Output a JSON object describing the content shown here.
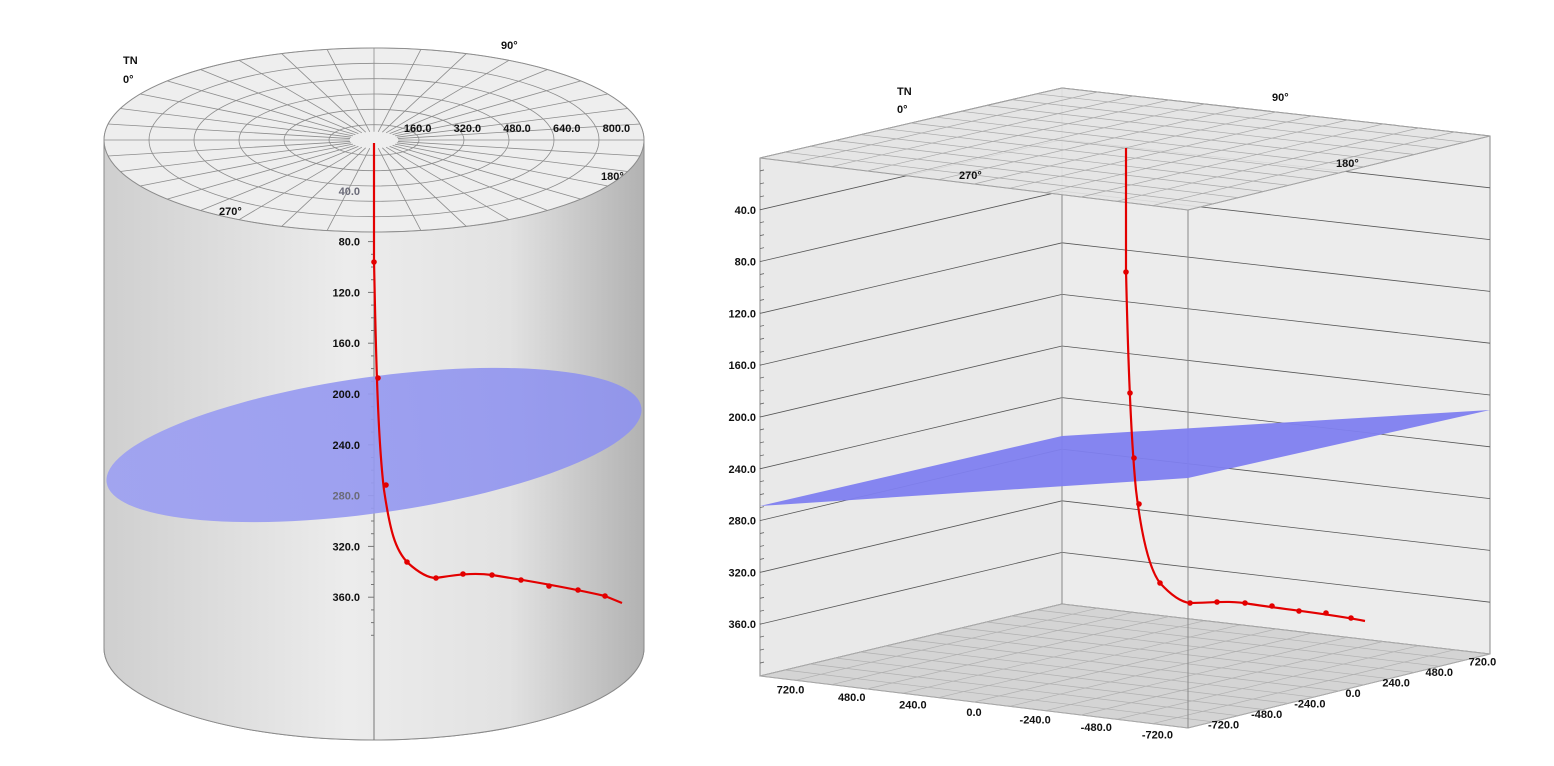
{
  "chart_data": [
    {
      "type": "3d-cylinder-trajectory",
      "north_label": "TN",
      "north_angle_label": "0°",
      "azimuth_labels": [
        "90°",
        "180°",
        "270°"
      ],
      "radius_ticks": [
        "160.0",
        "320.0",
        "480.0",
        "640.0",
        "800.0"
      ],
      "depth_ticks": [
        "40.0",
        "80.0",
        "120.0",
        "160.0",
        "200.0",
        "240.0",
        "280.0",
        "320.0",
        "360.0"
      ],
      "depth_range": [
        0,
        400
      ],
      "plane_color": "#8c90f0",
      "trajectory_color": "#e30000"
    },
    {
      "type": "3d-box-trajectory",
      "north_label": "TN",
      "north_angle_label": "0°",
      "azimuth_labels": [
        "90°",
        "180°",
        "270°"
      ],
      "depth_ticks": [
        "40.0",
        "80.0",
        "120.0",
        "160.0",
        "200.0",
        "240.0",
        "280.0",
        "320.0",
        "360.0"
      ],
      "depth_range": [
        0,
        400
      ],
      "x_ticks": [
        "720.0",
        "480.0",
        "240.0",
        "0.0",
        "-240.0",
        "-480.0",
        "-720.0"
      ],
      "y_ticks": [
        "-720.0",
        "-480.0",
        "-240.0",
        "0.0",
        "240.0",
        "480.0",
        "720.0"
      ],
      "plane_color": "#8080f0",
      "trajectory_color": "#e30000"
    }
  ]
}
